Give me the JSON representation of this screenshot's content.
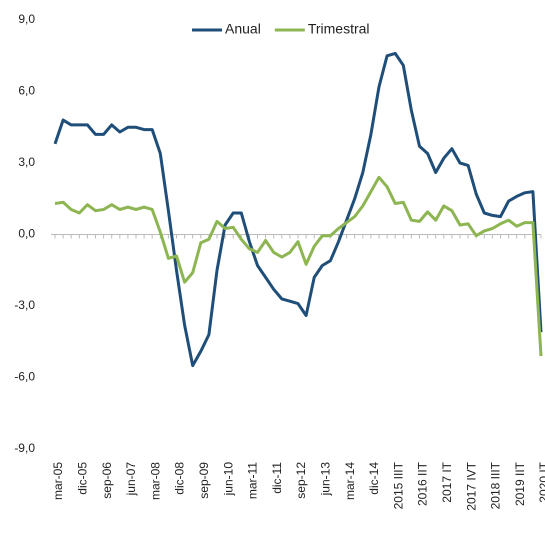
{
  "chart_data": {
    "type": "line",
    "categories": [
      "mar-05",
      null,
      null,
      "dic-05",
      null,
      null,
      "sep-06",
      null,
      null,
      "jun-07",
      null,
      null,
      "mar-08",
      null,
      null,
      "dic-08",
      null,
      null,
      "sep-09",
      null,
      null,
      "jun-10",
      null,
      null,
      "mar-11",
      null,
      null,
      "dic-11",
      null,
      null,
      "sep-12",
      null,
      null,
      "jun-13",
      null,
      null,
      "mar-14",
      null,
      null,
      "dic-14",
      null,
      null,
      "2015 IIIT",
      null,
      null,
      "2016 IIT",
      null,
      null,
      "2017 IT",
      null,
      null,
      "2017 IVT",
      null,
      null,
      "2018 IIIT",
      null,
      null,
      "2019 IIT",
      null,
      null,
      "2020 IT"
    ],
    "series": [
      {
        "name": "Anual",
        "color": "#1f4e79",
        "values": [
          3.8,
          4.8,
          4.6,
          4.6,
          4.6,
          4.2,
          4.2,
          4.6,
          4.3,
          4.5,
          4.5,
          4.4,
          4.4,
          3.4,
          1.0,
          -1.5,
          -3.8,
          -5.5,
          -4.9,
          -4.2,
          -1.5,
          0.4,
          0.9,
          0.9,
          -0.3,
          -1.3,
          -1.8,
          -2.3,
          -2.7,
          -2.8,
          -2.9,
          -3.4,
          -1.8,
          -1.3,
          -1.1,
          -0.3,
          0.6,
          1.5,
          2.6,
          4.2,
          6.2,
          7.5,
          7.6,
          7.1,
          5.2,
          3.7,
          3.4,
          2.6,
          3.2,
          3.6,
          3.0,
          2.9,
          1.7,
          0.9,
          0.8,
          0.75,
          1.4,
          1.6,
          1.75,
          1.8,
          -4.1
        ]
      },
      {
        "name": "Trimestral",
        "color": "#8db551",
        "values": [
          1.3,
          1.35,
          1.05,
          0.9,
          1.25,
          1.0,
          1.05,
          1.25,
          1.05,
          1.15,
          1.05,
          1.15,
          1.05,
          0.1,
          -1.0,
          -0.9,
          -2.0,
          -1.6,
          -0.35,
          -0.2,
          0.55,
          0.25,
          0.3,
          -0.2,
          -0.6,
          -0.75,
          -0.25,
          -0.75,
          -0.95,
          -0.75,
          -0.3,
          -1.25,
          -0.5,
          -0.05,
          -0.05,
          0.25,
          0.5,
          0.75,
          1.2,
          1.8,
          2.4,
          2.0,
          1.3,
          1.35,
          0.6,
          0.55,
          0.95,
          0.6,
          1.2,
          1.0,
          0.4,
          0.45,
          -0.05,
          0.15,
          0.25,
          0.45,
          0.6,
          0.35,
          0.5,
          0.5,
          -5.1
        ]
      }
    ],
    "ylim": [
      -9,
      9
    ],
    "yticks": [
      {
        "value": -9,
        "label": "-9,0"
      },
      {
        "value": -6,
        "label": "-6,0"
      },
      {
        "value": -3,
        "label": "-3,0"
      },
      {
        "value": 0,
        "label": "0,0"
      },
      {
        "value": 3,
        "label": "3,0"
      },
      {
        "value": 6,
        "label": "6,0"
      },
      {
        "value": 9,
        "label": "9,0"
      }
    ],
    "grid": false,
    "legend": "top"
  }
}
